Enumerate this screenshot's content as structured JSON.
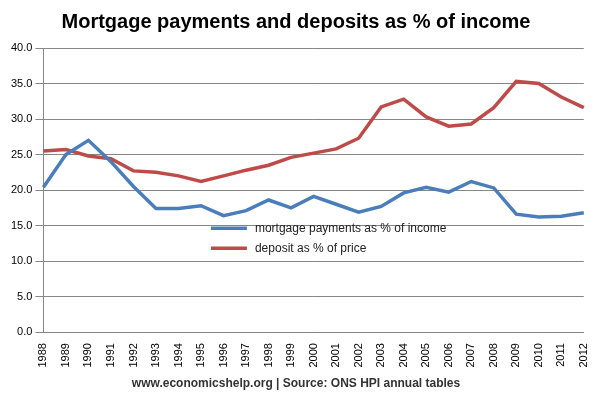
{
  "chart_data": {
    "type": "line",
    "title": "Mortgage payments and deposits as % of income",
    "source": "www.economicshelp.org | Source: ONS HPI annual tables",
    "categories": [
      "1988",
      "1989",
      "1990",
      "1991",
      "1992",
      "1993",
      "1994",
      "1995",
      "1996",
      "1997",
      "1998",
      "1999",
      "2000",
      "2001",
      "2002",
      "2003",
      "2004",
      "2005",
      "2006",
      "2007",
      "2008",
      "2009",
      "2010",
      "2011",
      "2012"
    ],
    "series": [
      {
        "name": "mortgage payments as % of income",
        "color": "#4a7ebb",
        "values": [
          20.4,
          25.0,
          27.0,
          24.0,
          20.5,
          17.4,
          17.4,
          17.8,
          16.4,
          17.1,
          18.6,
          17.5,
          19.1,
          18.0,
          16.9,
          17.7,
          19.6,
          20.4,
          19.7,
          21.2,
          20.3,
          16.6,
          16.2,
          16.3,
          16.8
        ]
      },
      {
        "name": "deposit as % of price",
        "color": "#be4b48",
        "values": [
          25.5,
          25.7,
          24.8,
          24.4,
          22.7,
          22.5,
          22.0,
          21.2,
          22.0,
          22.8,
          23.5,
          24.6,
          25.2,
          25.8,
          27.3,
          31.7,
          32.8,
          30.3,
          29.0,
          29.3,
          31.6,
          35.3,
          35.0,
          33.1,
          31.6
        ]
      }
    ],
    "ylim": [
      0,
      40
    ],
    "yticks": [
      {
        "value": 0,
        "label": "0.0"
      },
      {
        "value": 5,
        "label": "5.0"
      },
      {
        "value": 10,
        "label": "10.0"
      },
      {
        "value": 15,
        "label": "15.0"
      },
      {
        "value": 20,
        "label": "20.0"
      },
      {
        "value": 25,
        "label": "25.0"
      },
      {
        "value": 30,
        "label": "30.0"
      },
      {
        "value": 35,
        "label": "35.0"
      },
      {
        "value": 40,
        "label": "40.0"
      }
    ],
    "grid": true,
    "legend": "bottom"
  }
}
